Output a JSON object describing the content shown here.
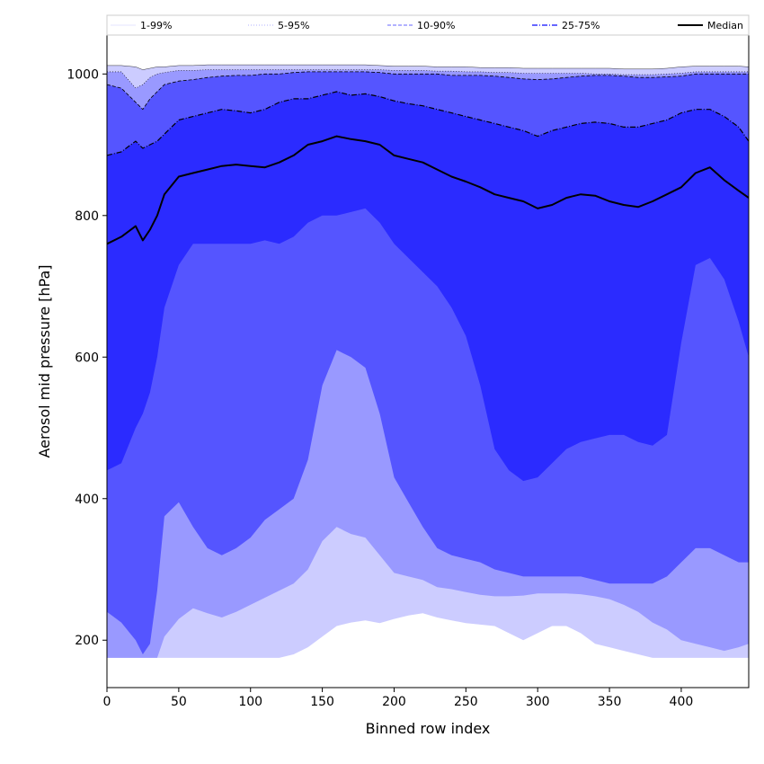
{
  "chart_data": {
    "type": "area",
    "title": "",
    "xlabel": "Binned row index",
    "ylabel": "Aerosol mid pressure [hPa]",
    "xlim": [
      0,
      447
    ],
    "ylim": [
      133,
      1055
    ],
    "xticks": [
      0,
      50,
      100,
      150,
      200,
      250,
      300,
      350,
      400
    ],
    "yticks": [
      200,
      400,
      600,
      800,
      1000
    ],
    "legend_position": "top",
    "legend": [
      {
        "label": "1-99%",
        "style": "solid-thin",
        "color": "#ccccff"
      },
      {
        "label": "5-95%",
        "style": "dotted",
        "color": "#9999ff"
      },
      {
        "label": "10-90%",
        "style": "dashed",
        "color": "#6666ff"
      },
      {
        "label": "25-75%",
        "style": "dashdot",
        "color": "#3333ff"
      },
      {
        "label": "Median",
        "style": "solid-thick",
        "color": "#000000"
      }
    ],
    "x": [
      0,
      10,
      20,
      25,
      30,
      35,
      40,
      50,
      60,
      70,
      80,
      90,
      100,
      110,
      120,
      130,
      140,
      150,
      160,
      170,
      180,
      190,
      200,
      210,
      220,
      230,
      240,
      250,
      260,
      270,
      280,
      290,
      300,
      310,
      320,
      330,
      340,
      350,
      360,
      370,
      380,
      390,
      400,
      410,
      420,
      430,
      440,
      447
    ],
    "series": [
      {
        "name": "p1",
        "color": "#ccccff",
        "values": [
          175,
          175,
          175,
          175,
          175,
          175,
          175,
          175,
          175,
          175,
          175,
          175,
          175,
          175,
          175,
          180,
          190,
          205,
          220,
          225,
          228,
          224,
          230,
          235,
          238,
          232,
          228,
          224,
          222,
          220,
          210,
          200,
          210,
          220,
          220,
          210,
          195,
          190,
          185,
          180,
          175,
          175,
          175,
          175,
          175,
          175,
          175,
          175
        ]
      },
      {
        "name": "p5",
        "color": "#9999ff",
        "values": [
          175,
          175,
          175,
          175,
          175,
          175,
          205,
          230,
          245,
          238,
          232,
          240,
          250,
          260,
          270,
          280,
          300,
          340,
          360,
          350,
          345,
          320,
          295,
          290,
          285,
          275,
          272,
          268,
          264,
          262,
          262,
          263,
          266,
          266,
          266,
          265,
          262,
          258,
          250,
          240,
          225,
          215,
          200,
          195,
          190,
          185,
          190,
          195
        ]
      },
      {
        "name": "p10",
        "color": "#6666ff",
        "values": [
          240,
          225,
          200,
          180,
          195,
          270,
          375,
          395,
          360,
          330,
          320,
          330,
          345,
          370,
          385,
          400,
          455,
          560,
          610,
          600,
          585,
          520,
          430,
          395,
          360,
          330,
          320,
          315,
          310,
          300,
          295,
          290,
          290,
          290,
          290,
          290,
          285,
          280,
          280,
          280,
          280,
          290,
          310,
          330,
          330,
          320,
          310,
          310
        ]
      },
      {
        "name": "p25",
        "color": "#5050ff",
        "values": [
          440,
          450,
          500,
          520,
          550,
          600,
          670,
          730,
          760,
          760,
          760,
          760,
          760,
          765,
          760,
          770,
          790,
          800,
          800,
          805,
          810,
          790,
          760,
          740,
          720,
          700,
          670,
          630,
          560,
          470,
          440,
          425,
          430,
          450,
          470,
          480,
          485,
          490,
          490,
          480,
          475,
          490,
          620,
          730,
          740,
          710,
          650,
          600
        ]
      },
      {
        "name": "median",
        "color": "#000000",
        "values": [
          760,
          770,
          785,
          765,
          780,
          800,
          830,
          855,
          860,
          865,
          870,
          872,
          870,
          868,
          875,
          885,
          900,
          905,
          912,
          908,
          905,
          900,
          885,
          880,
          875,
          865,
          855,
          848,
          840,
          830,
          825,
          820,
          810,
          815,
          825,
          830,
          828,
          820,
          815,
          812,
          820,
          830,
          840,
          860,
          868,
          850,
          835,
          825
        ]
      },
      {
        "name": "p75",
        "color": "#2b2bff",
        "values": [
          885,
          890,
          905,
          895,
          900,
          905,
          915,
          935,
          940,
          945,
          950,
          948,
          945,
          950,
          960,
          965,
          965,
          970,
          975,
          970,
          972,
          968,
          962,
          958,
          955,
          950,
          945,
          940,
          935,
          930,
          925,
          920,
          912,
          920,
          925,
          930,
          932,
          930,
          925,
          925,
          930,
          935,
          945,
          950,
          950,
          940,
          925,
          905
        ]
      },
      {
        "name": "p90",
        "color": "#5050ff",
        "values": [
          985,
          980,
          960,
          950,
          965,
          975,
          985,
          990,
          992,
          995,
          997,
          998,
          998,
          1000,
          1000,
          1002,
          1003,
          1003,
          1003,
          1003,
          1003,
          1002,
          1000,
          1000,
          1000,
          1000,
          998,
          998,
          998,
          997,
          995,
          993,
          992,
          993,
          995,
          997,
          998,
          998,
          997,
          995,
          995,
          996,
          997,
          1000,
          1000,
          1000,
          1000,
          1000
        ]
      },
      {
        "name": "p95",
        "color": "#9999ff",
        "values": [
          1003,
          1003,
          980,
          985,
          995,
          1000,
          1002,
          1005,
          1005,
          1006,
          1006,
          1006,
          1006,
          1006,
          1006,
          1006,
          1006,
          1006,
          1006,
          1006,
          1006,
          1006,
          1005,
          1005,
          1005,
          1004,
          1004,
          1003,
          1003,
          1002,
          1002,
          1001,
          1001,
          1001,
          1001,
          1001,
          1000,
          1000,
          999,
          999,
          999,
          1000,
          1001,
          1003,
          1003,
          1003,
          1003,
          1003
        ]
      },
      {
        "name": "p99",
        "color": "#ccccff",
        "values": [
          1012,
          1012,
          1010,
          1006,
          1008,
          1010,
          1010,
          1012,
          1012,
          1013,
          1013,
          1013,
          1013,
          1013,
          1013,
          1013,
          1013,
          1013,
          1013,
          1013,
          1013,
          1012,
          1011,
          1011,
          1011,
          1010,
          1010,
          1010,
          1009,
          1009,
          1009,
          1008,
          1008,
          1008,
          1008,
          1008,
          1008,
          1008,
          1007,
          1007,
          1007,
          1008,
          1010,
          1011,
          1011,
          1011,
          1011,
          1010
        ]
      }
    ]
  }
}
